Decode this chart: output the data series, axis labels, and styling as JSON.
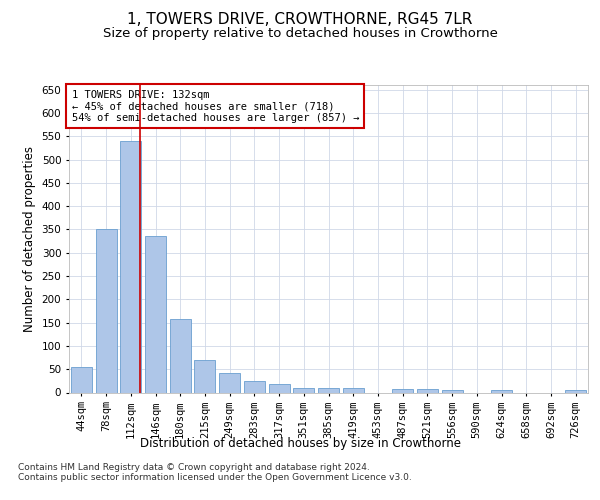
{
  "title": "1, TOWERS DRIVE, CROWTHORNE, RG45 7LR",
  "subtitle": "Size of property relative to detached houses in Crowthorne",
  "xlabel": "Distribution of detached houses by size in Crowthorne",
  "ylabel": "Number of detached properties",
  "bar_labels": [
    "44sqm",
    "78sqm",
    "112sqm",
    "146sqm",
    "180sqm",
    "215sqm",
    "249sqm",
    "283sqm",
    "317sqm",
    "351sqm",
    "385sqm",
    "419sqm",
    "453sqm",
    "487sqm",
    "521sqm",
    "556sqm",
    "590sqm",
    "624sqm",
    "658sqm",
    "692sqm",
    "726sqm"
  ],
  "bar_values": [
    55,
    352,
    540,
    336,
    157,
    70,
    42,
    25,
    18,
    10,
    10,
    10,
    0,
    8,
    8,
    5,
    0,
    5,
    0,
    0,
    5
  ],
  "bar_color": "#aec6e8",
  "bar_edge_color": "#6a9fd0",
  "background_color": "#ffffff",
  "grid_color": "#d0d8e8",
  "annotation_text_line1": "1 TOWERS DRIVE: 132sqm",
  "annotation_text_line2": "← 45% of detached houses are smaller (718)",
  "annotation_text_line3": "54% of semi-detached houses are larger (857) →",
  "annotation_box_color": "#ffffff",
  "annotation_box_edge_color": "#cc0000",
  "red_line_x": 2.38,
  "ylim": [
    0,
    660
  ],
  "yticks": [
    0,
    50,
    100,
    150,
    200,
    250,
    300,
    350,
    400,
    450,
    500,
    550,
    600,
    650
  ],
  "footer_line1": "Contains HM Land Registry data © Crown copyright and database right 2024.",
  "footer_line2": "Contains public sector information licensed under the Open Government Licence v3.0.",
  "title_fontsize": 11,
  "subtitle_fontsize": 9.5,
  "ylabel_fontsize": 8.5,
  "xlabel_fontsize": 8.5,
  "tick_fontsize": 7.5,
  "annotation_fontsize": 7.5,
  "footer_fontsize": 6.5
}
